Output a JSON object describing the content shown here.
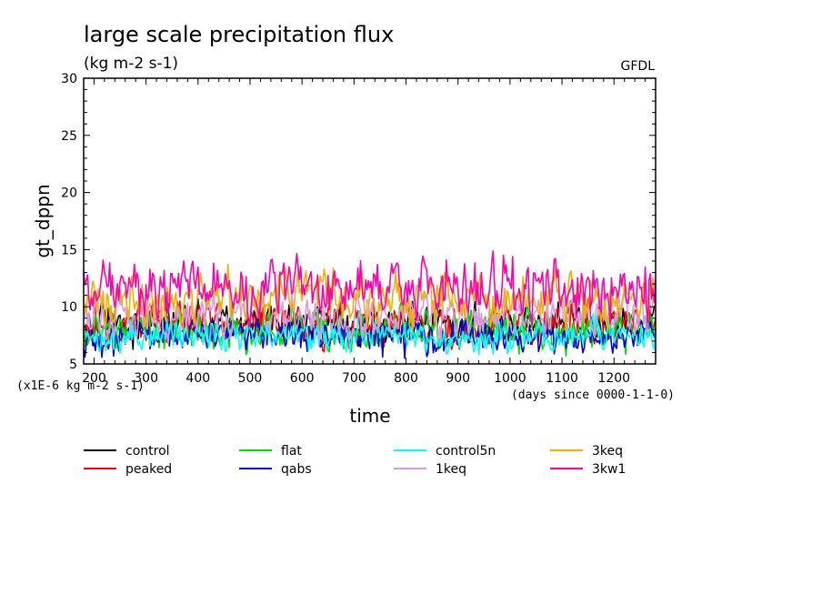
{
  "chart_data": {
    "type": "line",
    "title": "large scale precipitation flux",
    "subtitle": "(kg m-2 s-1)",
    "source": "GFDL",
    "xlabel": "time",
    "ylabel": "gt_dppn",
    "x_unit_note": "(days since 0000-1-1-0)",
    "y_scale_note": "(x1E-6 kg m-2 s-1)",
    "xlim": [
      180,
      1280
    ],
    "ylim": [
      5,
      30
    ],
    "x_ticks": [
      "200",
      "300",
      "400",
      "500",
      "600",
      "700",
      "800",
      "900",
      "1000",
      "1100",
      "1200"
    ],
    "y_ticks": [
      "5",
      "10",
      "15",
      "20",
      "25",
      "30"
    ],
    "grid": false,
    "legend_position": "bottom",
    "series": [
      {
        "name": "control",
        "color": "#000000",
        "mean": 8.6,
        "amplitude": 1.8
      },
      {
        "name": "peaked",
        "color": "#ff0000",
        "mean": 8.5,
        "amplitude": 1.8
      },
      {
        "name": "flat",
        "color": "#00dd00",
        "mean": 8.0,
        "amplitude": 1.7
      },
      {
        "name": "qabs",
        "color": "#0000dd",
        "mean": 7.4,
        "amplitude": 1.6
      },
      {
        "name": "control5n",
        "color": "#00ffff",
        "mean": 7.5,
        "amplitude": 1.4
      },
      {
        "name": "1keq",
        "color": "#dd99dd",
        "mean": 9.2,
        "amplitude": 2.0
      },
      {
        "name": "3keq",
        "color": "#f0b000",
        "mean": 10.8,
        "amplitude": 2.2
      },
      {
        "name": "3kw1",
        "color": "#ff00aa",
        "mean": 11.6,
        "amplitude": 2.4
      }
    ]
  }
}
